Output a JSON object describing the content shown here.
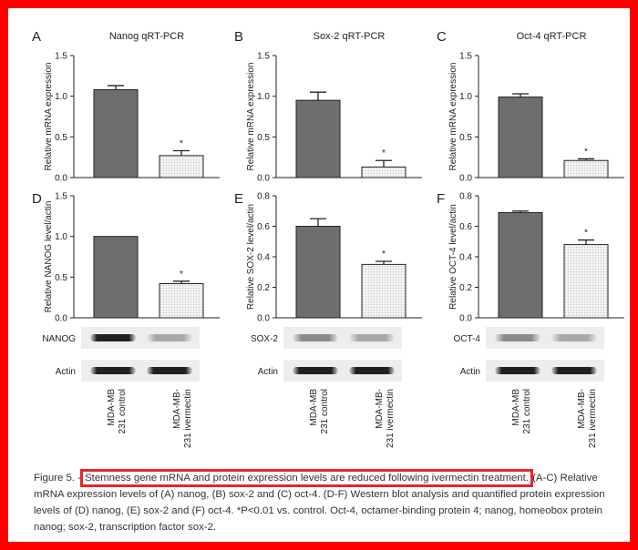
{
  "colors": {
    "frame": "#ff0000",
    "highlight": "#e8242b",
    "bar_control": "#6e6e6e",
    "bar_ivermectin": "#f0f0f0",
    "text": "#222222"
  },
  "chart_data": [
    {
      "panel": "A",
      "type": "bar",
      "title": "Nanog qRT-PCR",
      "xlabel": "",
      "ylabel": "Relative mRNA expression",
      "categories": [
        "MDA-MB 231 control",
        "MDA-MB-231 ivermectin"
      ],
      "values": [
        1.08,
        0.27
      ],
      "errors": [
        0.05,
        0.06
      ],
      "ylim": [
        0,
        1.5
      ],
      "yticks": [
        "0.0",
        "0.5",
        "1.0",
        "1.5"
      ],
      "significance": [
        "",
        "*"
      ]
    },
    {
      "panel": "B",
      "type": "bar",
      "title": "Sox-2 qRT-PCR",
      "xlabel": "",
      "ylabel": "Relative mRNA expression",
      "categories": [
        "MDA-MB 231 control",
        "MDA-MB-231 ivermectin"
      ],
      "values": [
        0.95,
        0.13
      ],
      "errors": [
        0.1,
        0.08
      ],
      "ylim": [
        0,
        1.5
      ],
      "yticks": [
        "0.0",
        "0.5",
        "1.0",
        "1.5"
      ],
      "significance": [
        "",
        "*"
      ]
    },
    {
      "panel": "C",
      "type": "bar",
      "title": "Oct-4 qRT-PCR",
      "xlabel": "",
      "ylabel": "Relative mRNA expression",
      "categories": [
        "MDA-MB 231 control",
        "MDA-MB-231 ivermectin"
      ],
      "values": [
        0.99,
        0.21
      ],
      "errors": [
        0.04,
        0.02
      ],
      "ylim": [
        0,
        1.5
      ],
      "yticks": [
        "0.0",
        "0.5",
        "1.0",
        "1.5"
      ],
      "significance": [
        "",
        "*"
      ]
    },
    {
      "panel": "D",
      "type": "bar",
      "title": "",
      "xlabel": "",
      "ylabel": "Relative NANOG level/actin",
      "categories": [
        "MDA-MB 231 control",
        "MDA-MB-231 ivermectin"
      ],
      "values": [
        1.0,
        0.42
      ],
      "errors": [
        0.0,
        0.03
      ],
      "ylim": [
        0,
        1.5
      ],
      "yticks": [
        "0.0",
        "0.5",
        "1.0",
        "1.5"
      ],
      "significance": [
        "",
        "*"
      ],
      "blot_labels": [
        "NANOG",
        "Actin"
      ]
    },
    {
      "panel": "E",
      "type": "bar",
      "title": "",
      "xlabel": "",
      "ylabel": "Relative SOX-2 level/actin",
      "categories": [
        "MDA-MB 231 control",
        "MDA-MB-231 ivermectin"
      ],
      "values": [
        0.6,
        0.35
      ],
      "errors": [
        0.05,
        0.02
      ],
      "ylim": [
        0,
        0.8
      ],
      "yticks": [
        "0.0",
        "0.2",
        "0.4",
        "0.6",
        "0.8"
      ],
      "significance": [
        "",
        "*"
      ],
      "blot_labels": [
        "SOX-2",
        "Actin"
      ]
    },
    {
      "panel": "F",
      "type": "bar",
      "title": "",
      "xlabel": "",
      "ylabel": "Relative OCT-4  level/actin",
      "categories": [
        "MDA-MB 231 control",
        "MDA-MB-231 ivermectin"
      ],
      "values": [
        0.69,
        0.48
      ],
      "errors": [
        0.01,
        0.03
      ],
      "ylim": [
        0,
        0.8
      ],
      "yticks": [
        "0.0",
        "0.2",
        "0.4",
        "0.6",
        "0.8"
      ],
      "significance": [
        "",
        "*"
      ],
      "blot_labels": [
        "OCT-4",
        "Actin"
      ]
    }
  ],
  "x_category_lines": [
    [
      "MDA-MB",
      "231 control"
    ],
    [
      "MDA-MB-",
      "231 ivermectin"
    ]
  ],
  "caption": {
    "prefix": "Figure 5. - ",
    "highlight": "Stemness gene mRNA and protein expression levels are reduced following ivermectin treatment.",
    "rest": " (A-C) Relative mRNA expression levels of (A) nanog, (B) sox-2 and (C) oct-4. (D-F) Western blot analysis and quantified protein expression levels of (D) nanog, (E) sox-2 and (F) oct-4. *P<0.01 vs. control. Oct-4, octamer-binding protein 4; nanog, homeobox protein nanog; sox-2, transcription factor sox-2."
  }
}
